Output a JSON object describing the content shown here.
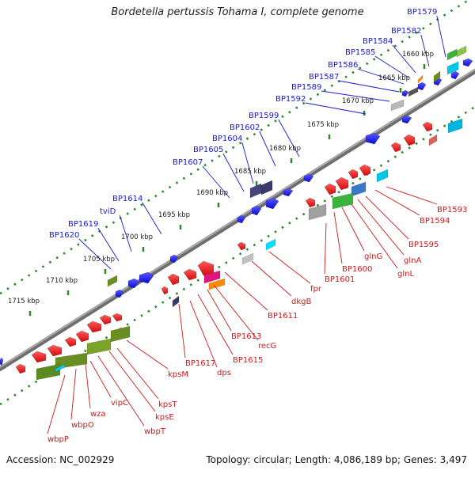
{
  "title": "Bordetella pertussis Tohama I, complete genome",
  "footer": {
    "accession": "Accession: NC_002929",
    "summary": "Topology: circular; Length: 4,086,189 bp; Genes: 3,497"
  },
  "colors": {
    "backbone": "#808080",
    "tick": "#2a8a2a",
    "forward_label": "#1a1acc",
    "reverse_label": "#cc1a1a",
    "forward_gene": "#1515e6",
    "reverse_gene": "#e61515"
  },
  "kbp_ticks": [
    "1660 kbp",
    "1665 kbp",
    "1670 kbp",
    "1675 kbp",
    "1680 kbp",
    "1685 kbp",
    "1690 kbp",
    "1695 kbp",
    "1700 kbp",
    "1705 kbp",
    "1710 kbp",
    "1715 kbp"
  ],
  "forward_labels": [
    "BP1579",
    "BP1582",
    "BP1584",
    "BP1585",
    "BP1586",
    "BP1587",
    "BP1589",
    "BP1592",
    "BP1599",
    "BP1602",
    "BP1604",
    "BP1605",
    "BP1607",
    "BP1614",
    "tviD",
    "BP1619",
    "BP1620"
  ],
  "reverse_labels": [
    "BP1593",
    "BP1594",
    "BP1595",
    "glnA",
    "glnL",
    "glnG",
    "BP1600",
    "BP1601",
    "fpr",
    "dkgB",
    "BP1611",
    "recG",
    "BP1613",
    "BP1615",
    "dps",
    "BP1617",
    "kpsM",
    "kpsT",
    "kpsE",
    "wbpT",
    "vipC",
    "wza",
    "wbpO",
    "wbpP"
  ]
}
